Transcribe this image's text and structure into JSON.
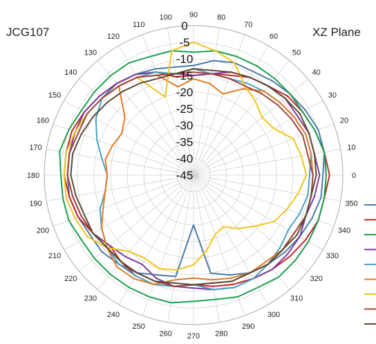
{
  "chart_data": {
    "type": "line",
    "subtype": "polar",
    "title_left": "JCG107",
    "title_right": "XZ  Plane",
    "angle_ticks": [
      0,
      10,
      20,
      30,
      40,
      50,
      60,
      70,
      80,
      90,
      100,
      110,
      120,
      130,
      140,
      150,
      160,
      170,
      180,
      190,
      200,
      210,
      220,
      230,
      240,
      250,
      260,
      270,
      280,
      290,
      300,
      310,
      320,
      330,
      340,
      350
    ],
    "radial_ticks": [
      0,
      -5,
      -10,
      -15,
      -20,
      -25,
      -30,
      -35,
      -40,
      -45
    ],
    "radial_range": [
      -45,
      0
    ],
    "grid": true,
    "legend": {
      "placement": "right",
      "entries_shown": 9,
      "labels_visible": false
    },
    "colors": [
      "#4a7aa8",
      "#c0272d",
      "#1a9f4e",
      "#7b3a9a",
      "#4aa3c4",
      "#e07a25",
      "#f0c419",
      "#a0453a",
      "#5a4a32"
    ],
    "series": [
      {
        "values": [
          -6,
          -5,
          -5,
          -6,
          -7,
          -8,
          -9,
          -9,
          -10,
          -12,
          -12,
          -11,
          -10,
          -9,
          -9,
          -8,
          -7,
          -7,
          -7,
          -7,
          -8,
          -9,
          -9,
          -10,
          -11,
          -13,
          -14,
          -30,
          -15,
          -13,
          -11,
          -10,
          -9,
          -8,
          -7,
          -6
        ]
      },
      {
        "values": [
          -4,
          -5,
          -6,
          -7,
          -8,
          -10,
          -11,
          -13,
          -14,
          -15,
          -15,
          -12,
          -10,
          -9,
          -8,
          -7,
          -6,
          -6,
          -6,
          -7,
          -8,
          -10,
          -12,
          -11,
          -10,
          -10,
          -11,
          -12,
          -11,
          -10,
          -9,
          -8,
          -7,
          -6,
          -5,
          -5
        ]
      },
      {
        "values": [
          -5,
          -5,
          -6,
          -7,
          -7,
          -7,
          -7,
          -7,
          -7,
          -8,
          -7,
          -7,
          -6,
          -6,
          -6,
          -6,
          -5,
          -4,
          -5,
          -5,
          -5,
          -6,
          -6,
          -6,
          -6,
          -6,
          -6,
          -7,
          -7,
          -6,
          -6,
          -5,
          -5,
          -5,
          -5,
          -5
        ]
      },
      {
        "values": [
          -7,
          -8,
          -8,
          -9,
          -9,
          -10,
          -11,
          -12,
          -14,
          -15,
          -14,
          -12,
          -10,
          -9,
          -8,
          -7,
          -7,
          -7,
          -7,
          -8,
          -9,
          -10,
          -12,
          -13,
          -14,
          -12,
          -11,
          -11,
          -10,
          -9,
          -9,
          -8,
          -8,
          -8,
          -9,
          -8
        ]
      },
      {
        "values": [
          -10,
          -9,
          -9,
          -10,
          -11,
          -12,
          -13,
          -14,
          -14,
          -13,
          -14,
          -12,
          -11,
          -10,
          -9,
          -11,
          -14,
          -17,
          -19,
          -18,
          -15,
          -13,
          -11,
          -10,
          -10,
          -10,
          -11,
          -12,
          -10,
          -9,
          -9,
          -10,
          -11,
          -12,
          -11,
          -10
        ]
      },
      {
        "values": [
          -9,
          -9,
          -9,
          -10,
          -11,
          -12,
          -15,
          -19,
          -17,
          -16,
          -18,
          -13,
          -11,
          -10,
          -18,
          -20,
          -19,
          -18,
          -19,
          -18,
          -16,
          -13,
          -11,
          -9,
          -9,
          -10,
          -13,
          -14,
          -13,
          -12,
          -11,
          -11,
          -10,
          -10,
          -9,
          -9
        ]
      },
      {
        "values": [
          -11,
          -12,
          -13,
          -17,
          -18,
          -16,
          -14,
          -9,
          -7,
          -5,
          -7,
          -20,
          -11,
          -10,
          -9,
          -8,
          -7,
          -6,
          -6,
          -6,
          -7,
          -8,
          -11,
          -15,
          -16,
          -15,
          -16,
          -18,
          -22,
          -26,
          -27,
          -24,
          -21,
          -17,
          -15,
          -13
        ]
      },
      {
        "values": [
          -9,
          -10,
          -10,
          -11,
          -12,
          -13,
          -14,
          -14,
          -14,
          -14,
          -14,
          -13,
          -11,
          -10,
          -9,
          -8,
          -8,
          -7,
          -7,
          -8,
          -9,
          -10,
          -11,
          -11,
          -11,
          -11,
          -11,
          -12,
          -12,
          -11,
          -11,
          -10,
          -10,
          -10,
          -9,
          -9
        ]
      },
      {
        "values": [
          -8,
          -8,
          -8,
          -8,
          -9,
          -10,
          -11,
          -12,
          -13,
          -13,
          -14,
          -14,
          -13,
          -12,
          -11,
          -10,
          -9,
          -8,
          -8,
          -9,
          -10,
          -10,
          -11,
          -11,
          -11,
          -11,
          -12,
          -12,
          -12,
          -11,
          -11,
          -10,
          -10,
          -9,
          -9,
          -9
        ]
      }
    ]
  }
}
